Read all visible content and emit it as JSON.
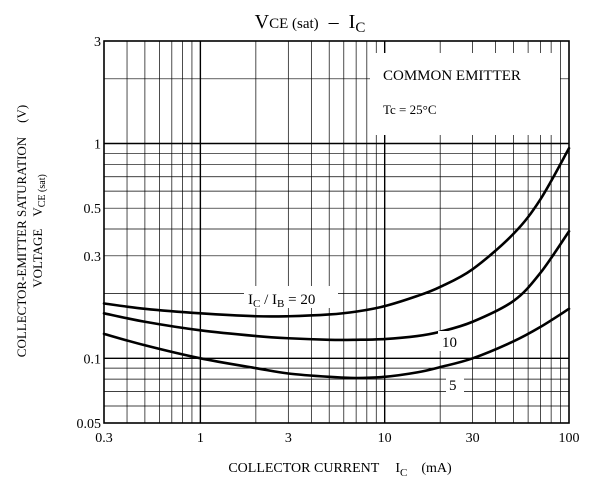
{
  "chart_data": {
    "type": "line",
    "title": "VCE (sat) – IC",
    "title_parts": {
      "main": "V",
      "sub1": "CE (sat)",
      "dash": "–",
      "i": "I",
      "sub2": "C"
    },
    "xlabel": "COLLECTOR CURRENT   IC   (mA)",
    "xlabel_parts": {
      "text": "COLLECTOR CURRENT",
      "i": "I",
      "sub": "C",
      "unit": "(mA)"
    },
    "ylabel": "COLLECTOR-EMITTER SATURATION VOLTAGE VCE (sat) (V)",
    "ylabel_parts": {
      "line1": "COLLECTOR-EMITTER SATURATION",
      "unit": "(V)",
      "line2": "VOLTAGE",
      "v": "V",
      "sub": "CE (sat)"
    },
    "x_scale": "log",
    "y_scale": "log",
    "xlim": [
      0.3,
      100
    ],
    "ylim": [
      0.05,
      3
    ],
    "x_ticks": [
      {
        "value": 0.3,
        "label": "0.3"
      },
      {
        "value": 1,
        "label": "1"
      },
      {
        "value": 3,
        "label": "3"
      },
      {
        "value": 10,
        "label": "10"
      },
      {
        "value": 30,
        "label": "30"
      },
      {
        "value": 100,
        "label": "100"
      }
    ],
    "y_ticks": [
      {
        "value": 0.05,
        "label": "0.05"
      },
      {
        "value": 0.1,
        "label": "0.1"
      },
      {
        "value": 0.3,
        "label": "0.3"
      },
      {
        "value": 0.5,
        "label": "0.5"
      },
      {
        "value": 1,
        "label": "1"
      },
      {
        "value": 3,
        "label": "3"
      }
    ],
    "grid": true,
    "annotations": {
      "common_emitter": "COMMON EMITTER",
      "tc": "Tc = 25°C",
      "ratio_prefix": "I",
      "ratio_c": "C",
      "ratio_mid": " / I",
      "ratio_b": "B",
      "ratio_suffix": " = 20"
    },
    "series": [
      {
        "name": "20",
        "x": [
          0.3,
          0.5,
          1,
          2,
          3,
          5,
          7,
          10,
          15,
          20,
          30,
          50,
          70,
          100
        ],
        "y": [
          0.18,
          0.17,
          0.162,
          0.157,
          0.157,
          0.16,
          0.165,
          0.175,
          0.195,
          0.215,
          0.26,
          0.38,
          0.55,
          0.95
        ]
      },
      {
        "name": "10",
        "x": [
          0.3,
          0.5,
          1,
          2,
          3,
          5,
          7,
          10,
          15,
          20,
          30,
          50,
          70,
          100
        ],
        "y": [
          0.162,
          0.148,
          0.135,
          0.127,
          0.124,
          0.122,
          0.122,
          0.123,
          0.127,
          0.133,
          0.148,
          0.185,
          0.25,
          0.39
        ]
      },
      {
        "name": "5",
        "x": [
          0.3,
          0.5,
          1,
          2,
          3,
          5,
          7,
          10,
          15,
          20,
          30,
          50,
          70,
          100
        ],
        "y": [
          0.13,
          0.115,
          0.1,
          0.09,
          0.085,
          0.082,
          0.081,
          0.082,
          0.086,
          0.091,
          0.1,
          0.12,
          0.14,
          0.17
        ]
      }
    ]
  }
}
